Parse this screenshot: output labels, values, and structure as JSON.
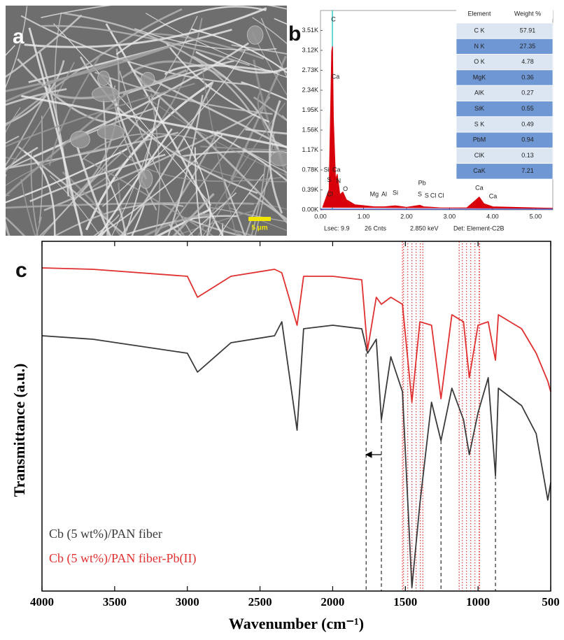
{
  "sem_image": {
    "panel_label": "a",
    "scale_bar_label": "5 μm"
  },
  "chart_data": [
    {
      "type": "area",
      "panel_label": "b",
      "color": "#d8000a",
      "x": [
        0.05,
        0.2,
        0.26,
        0.28,
        0.3,
        0.35,
        0.39,
        0.45,
        0.52,
        0.6,
        0.8,
        1.25,
        1.49,
        1.74,
        2.0,
        2.31,
        2.4,
        2.62,
        2.8,
        3.4,
        3.69,
        3.8,
        4.01,
        5.4
      ],
      "values": [
        50,
        400,
        3100,
        3200,
        1800,
        600,
        700,
        300,
        350,
        200,
        100,
        60,
        60,
        80,
        50,
        90,
        60,
        50,
        40,
        40,
        250,
        120,
        60,
        30
      ],
      "xlim": [
        0,
        5.4
      ],
      "ylim": [
        0,
        3900
      ],
      "xticks": [
        {
          "value": 0,
          "label": "0.00"
        },
        {
          "value": 1,
          "label": "1.00"
        },
        {
          "value": 2,
          "label": "2.00"
        },
        {
          "value": 3,
          "label": "3.00"
        },
        {
          "value": 4,
          "label": "4.00"
        },
        {
          "value": 5,
          "label": "5.00"
        }
      ],
      "yticks": [
        {
          "value": 0,
          "label": "0.00K"
        },
        {
          "value": 390,
          "label": "0.39K"
        },
        {
          "value": 780,
          "label": "0.78K"
        },
        {
          "value": 1170,
          "label": "1.17K"
        },
        {
          "value": 1560,
          "label": "1.56K"
        },
        {
          "value": 1950,
          "label": "1.95K"
        },
        {
          "value": 2340,
          "label": "2.34K"
        },
        {
          "value": 2730,
          "label": "2.73K"
        },
        {
          "value": 3120,
          "label": "3.12K"
        },
        {
          "value": 3510,
          "label": "3.51K"
        }
      ],
      "marker_line": {
        "x": 0.277,
        "color": "#3cc8c8"
      },
      "annotations": [
        {
          "text": "C",
          "x": 0.3,
          "y": 3720
        },
        {
          "text": "Ca",
          "x": 0.35,
          "y": 2600
        },
        {
          "text": "Si",
          "x": 0.14,
          "y": 780
        },
        {
          "text": "Ca",
          "x": 0.37,
          "y": 780
        },
        {
          "text": "S",
          "x": 0.2,
          "y": 580
        },
        {
          "text": "N",
          "x": 0.42,
          "y": 560
        },
        {
          "text": "Cl",
          "x": 0.22,
          "y": 300
        },
        {
          "text": "O",
          "x": 0.58,
          "y": 400
        },
        {
          "text": "Mg",
          "x": 1.25,
          "y": 300
        },
        {
          "text": "Al",
          "x": 1.48,
          "y": 300
        },
        {
          "text": "Si",
          "x": 1.74,
          "y": 330
        },
        {
          "text": "Pb",
          "x": 2.36,
          "y": 520
        },
        {
          "text": "S",
          "x": 2.31,
          "y": 300
        },
        {
          "text": "S",
          "x": 2.47,
          "y": 270
        },
        {
          "text": "Cl",
          "x": 2.62,
          "y": 270
        },
        {
          "text": "Cl",
          "x": 2.8,
          "y": 270
        },
        {
          "text": "Ca",
          "x": 3.69,
          "y": 420
        },
        {
          "text": "Ca",
          "x": 4.01,
          "y": 260
        }
      ],
      "footer": [
        "Lsec: 9.9",
        "26 Cnts",
        "2.850 keV",
        "Det: Element-C2B"
      ],
      "table": {
        "columns": [
          "Element",
          "Weight %"
        ],
        "rows": [
          [
            "C K",
            57.91
          ],
          [
            "N K",
            27.35
          ],
          [
            "O K",
            4.78
          ],
          [
            "MgK",
            0.36
          ],
          [
            "AlK",
            0.27
          ],
          [
            "SiK",
            0.55
          ],
          [
            "S K",
            0.49
          ],
          [
            "PbM",
            0.94
          ],
          [
            "ClK",
            0.13
          ],
          [
            "CaK",
            7.21
          ]
        ]
      }
    },
    {
      "type": "line",
      "panel_label": "c",
      "xlabel": "Wavenumber (cm⁻¹)",
      "ylabel": "Transmittance (a.u.)",
      "x": [
        4000,
        3650,
        3000,
        2930,
        2700,
        2400,
        2350,
        2245,
        2200,
        2000,
        1800,
        1760,
        1700,
        1665,
        1600,
        1520,
        1455,
        1400,
        1320,
        1255,
        1180,
        1100,
        1060,
        1000,
        930,
        880,
        860,
        700,
        600,
        520,
        500
      ],
      "series": [
        {
          "name": "Cb (5 wt%)/PAN fiber",
          "color": "#3a3a3a",
          "values": [
            73,
            72,
            68,
            62.6,
            71,
            73,
            77,
            46,
            75,
            76,
            75,
            68,
            72,
            49,
            67,
            57,
            1,
            25,
            54,
            43,
            58,
            49,
            39,
            51,
            61,
            33,
            58,
            53,
            45,
            26,
            31
          ]
        },
        {
          "name": "Cb (5 wt%)/PAN fiber-Pb(II)",
          "color": "#e03030",
          "values": [
            92.4,
            92,
            90,
            84,
            90,
            92,
            91,
            76,
            90,
            90,
            89,
            69,
            84,
            82,
            84,
            82,
            54,
            77,
            76,
            55,
            79,
            77,
            61,
            76,
            77,
            66,
            79,
            75,
            68,
            60,
            57
          ]
        }
      ],
      "xlim": [
        4000,
        500
      ],
      "ylim": [
        0,
        100
      ],
      "xticks": [
        4000,
        3500,
        3000,
        2500,
        2000,
        1500,
        1000,
        500
      ],
      "reference_lines": [
        1770,
        1665,
        1255,
        880
      ],
      "bands": [
        [
          1520,
          1380
        ],
        [
          1130,
          990
        ]
      ],
      "arrow": {
        "from": 1665,
        "to": 1770,
        "y": 39
      }
    }
  ]
}
